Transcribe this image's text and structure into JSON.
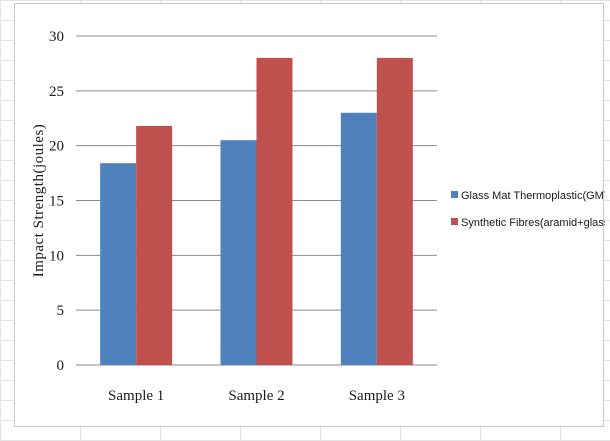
{
  "chart_data": {
    "type": "bar",
    "categories": [
      "Sample 1",
      "Sample 2",
      "Sample 3"
    ],
    "series": [
      {
        "name": "Glass Mat Thermoplastic(GMT)",
        "values": [
          18.4,
          20.5,
          23.0
        ],
        "color": "#4f81bd"
      },
      {
        "name": "Synthetic Fibres(aramid+glass)",
        "values": [
          21.8,
          28.0,
          28.0
        ],
        "color": "#c0504d"
      }
    ],
    "title": "",
    "xlabel": "",
    "ylabel": "Impact Strength(joules)",
    "ylim": [
      0,
      30
    ],
    "yticks": [
      "0",
      "5",
      "10",
      "15",
      "20",
      "25",
      "30"
    ],
    "grid": true,
    "legend_position": "right"
  }
}
